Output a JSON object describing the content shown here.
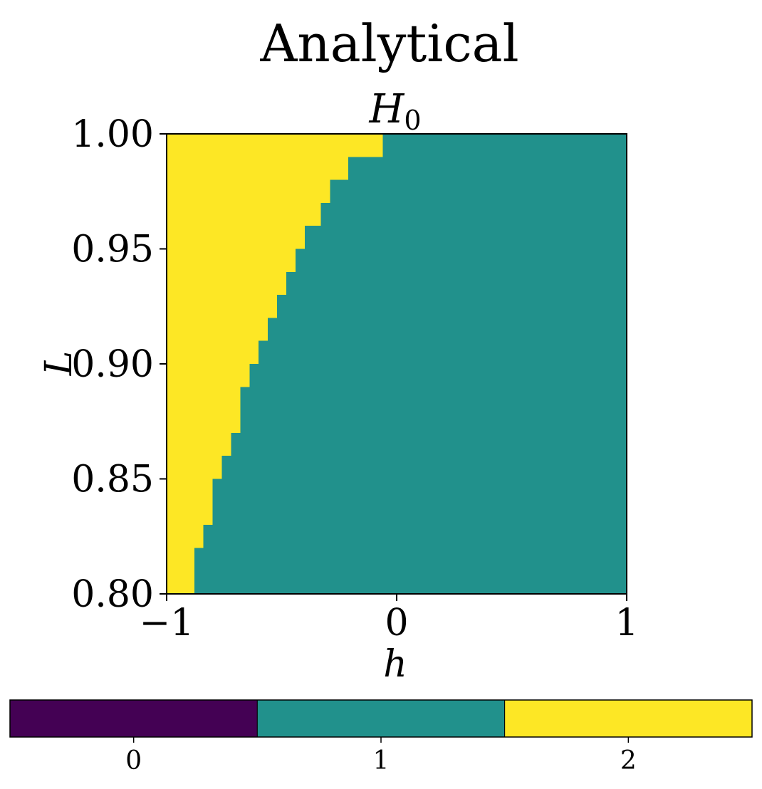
{
  "chart_data": {
    "type": "heatmap",
    "suptitle": "Analytical",
    "title_main": "H",
    "title_sub": "0",
    "xlabel": "h",
    "ylabel": "L",
    "xlim": [
      -1,
      1
    ],
    "ylim": [
      0.8,
      1.0
    ],
    "x_ticks": [
      {
        "value": -1,
        "label": "−1"
      },
      {
        "value": 0,
        "label": "0"
      },
      {
        "value": 1,
        "label": "1"
      }
    ],
    "y_ticks": [
      {
        "value": 0.8,
        "label": "0.80"
      },
      {
        "value": 0.85,
        "label": "0.85"
      },
      {
        "value": 0.9,
        "label": "0.90"
      },
      {
        "value": 0.95,
        "label": "0.95"
      },
      {
        "value": 1.0,
        "label": "1.00"
      }
    ],
    "region_values": {
      "left": 2,
      "right": 1
    },
    "boundary_steps": [
      {
        "l0": 0.8,
        "l1": 0.82,
        "h": -0.88
      },
      {
        "l0": 0.82,
        "l1": 0.83,
        "h": -0.84
      },
      {
        "l0": 0.83,
        "l1": 0.85,
        "h": -0.8
      },
      {
        "l0": 0.85,
        "l1": 0.86,
        "h": -0.76
      },
      {
        "l0": 0.86,
        "l1": 0.87,
        "h": -0.72
      },
      {
        "l0": 0.87,
        "l1": 0.89,
        "h": -0.68
      },
      {
        "l0": 0.89,
        "l1": 0.9,
        "h": -0.64
      },
      {
        "l0": 0.9,
        "l1": 0.91,
        "h": -0.6
      },
      {
        "l0": 0.91,
        "l1": 0.92,
        "h": -0.56
      },
      {
        "l0": 0.92,
        "l1": 0.93,
        "h": -0.52
      },
      {
        "l0": 0.93,
        "l1": 0.94,
        "h": -0.48
      },
      {
        "l0": 0.94,
        "l1": 0.95,
        "h": -0.44
      },
      {
        "l0": 0.95,
        "l1": 0.96,
        "h": -0.4
      },
      {
        "l0": 0.96,
        "l1": 0.97,
        "h": -0.33
      },
      {
        "l0": 0.97,
        "l1": 0.98,
        "h": -0.29
      },
      {
        "l0": 0.98,
        "l1": 0.99,
        "h": -0.21
      },
      {
        "l0": 0.99,
        "l1": 1.0,
        "h": -0.06
      }
    ],
    "colorbar": {
      "orientation": "horizontal",
      "categories": [
        {
          "value": 0,
          "label": "0",
          "color": "#440154"
        },
        {
          "value": 1,
          "label": "1",
          "color": "#21918c"
        },
        {
          "value": 2,
          "label": "2",
          "color": "#fde725"
        }
      ]
    }
  }
}
